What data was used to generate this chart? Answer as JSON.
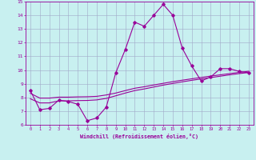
{
  "xlabel": "Windchill (Refroidissement éolien,°C)",
  "x": [
    0,
    1,
    2,
    3,
    4,
    5,
    6,
    7,
    8,
    9,
    10,
    11,
    12,
    13,
    14,
    15,
    16,
    17,
    18,
    19,
    20,
    21,
    22,
    23
  ],
  "y_main": [
    8.5,
    7.1,
    7.2,
    7.8,
    7.7,
    7.5,
    6.3,
    6.5,
    7.3,
    9.8,
    11.5,
    13.5,
    13.2,
    14.0,
    14.8,
    14.0,
    11.6,
    10.3,
    9.2,
    9.5,
    10.1,
    10.1,
    9.9,
    9.8
  ],
  "y_line2": [
    7.9,
    7.6,
    7.6,
    7.75,
    7.75,
    7.77,
    7.78,
    7.82,
    7.93,
    8.12,
    8.32,
    8.5,
    8.62,
    8.76,
    8.9,
    9.02,
    9.14,
    9.25,
    9.35,
    9.45,
    9.55,
    9.65,
    9.74,
    9.82
  ],
  "y_line3": [
    8.3,
    7.95,
    7.95,
    8.02,
    8.02,
    8.04,
    8.05,
    8.08,
    8.18,
    8.32,
    8.5,
    8.67,
    8.78,
    8.91,
    9.03,
    9.15,
    9.26,
    9.36,
    9.46,
    9.56,
    9.65,
    9.74,
    9.83,
    9.91
  ],
  "line_color": "#990099",
  "bg_color": "#c8f0f0",
  "grid_color": "#a0a8c8",
  "ylim": [
    6,
    15
  ],
  "yticks": [
    6,
    7,
    8,
    9,
    10,
    11,
    12,
    13,
    14,
    15
  ],
  "xticks": [
    0,
    1,
    2,
    3,
    4,
    5,
    6,
    7,
    8,
    9,
    10,
    11,
    12,
    13,
    14,
    15,
    16,
    17,
    18,
    19,
    20,
    21,
    22,
    23
  ],
  "marker": "D",
  "markersize": 1.8,
  "linewidth": 0.8
}
